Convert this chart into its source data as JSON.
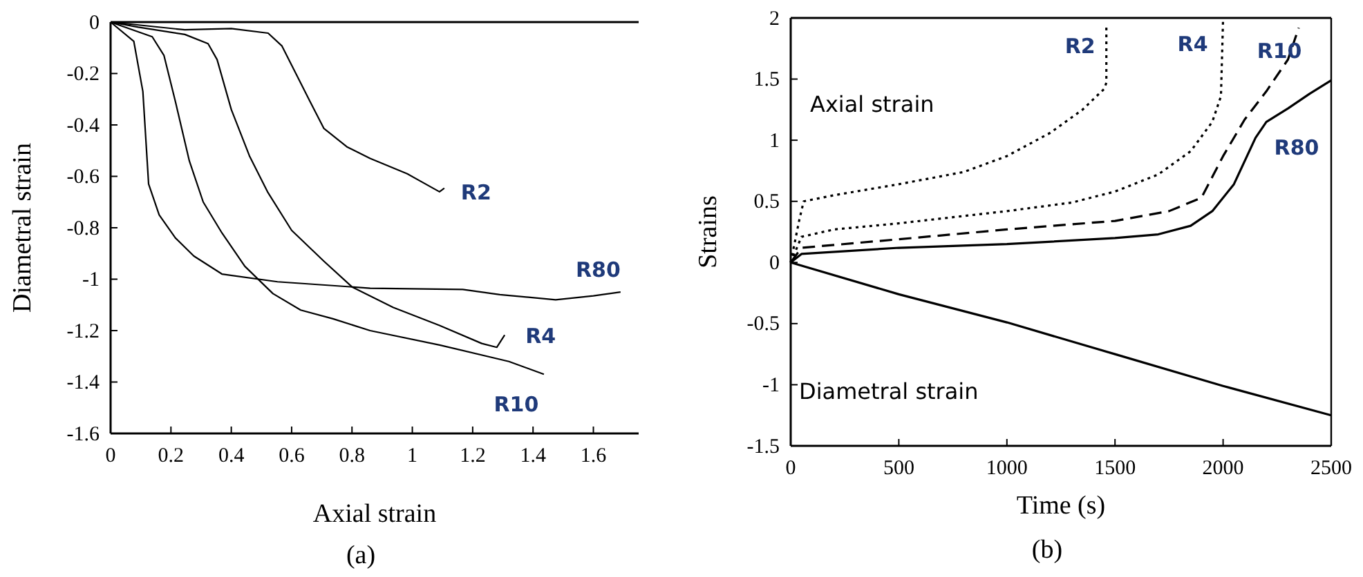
{
  "chart_data": [
    {
      "type": "line",
      "xlabel": "Axial strain",
      "ylabel": "Diametral strain",
      "xlim": [
        0,
        1.75
      ],
      "ylim": [
        -1.6,
        0
      ],
      "xticks": [
        0,
        0.2,
        0.4,
        0.6,
        0.8,
        1,
        1.2,
        1.4,
        1.6
      ],
      "yticks": [
        0,
        -0.2,
        -0.4,
        -0.6,
        -0.8,
        -1,
        -1.2,
        -1.4,
        -1.6
      ],
      "line_style": "solid",
      "annotations": [
        "(a)"
      ],
      "series": [
        {
          "name": "R2",
          "color": "#000000",
          "x": [
            0,
            0.246,
            0.4,
            0.522,
            0.568,
            0.614,
            0.66,
            0.707,
            0.783,
            0.86,
            0.983,
            1.09,
            1.106
          ],
          "values": [
            0,
            -0.03,
            -0.025,
            -0.043,
            -0.093,
            -0.2,
            -0.307,
            -0.414,
            -0.485,
            -0.53,
            -0.59,
            -0.66,
            -0.646
          ]
        },
        {
          "name": "R4",
          "color": "#000000",
          "x": [
            0,
            0.092,
            0.246,
            0.323,
            0.353,
            0.4,
            0.46,
            0.52,
            0.6,
            0.707,
            0.8,
            0.937,
            1.09,
            1.23,
            1.28,
            1.306
          ],
          "values": [
            0,
            -0.02,
            -0.048,
            -0.084,
            -0.146,
            -0.34,
            -0.52,
            -0.66,
            -0.81,
            -0.93,
            -1.03,
            -1.11,
            -1.18,
            -1.25,
            -1.265,
            -1.217
          ]
        },
        {
          "name": "R10",
          "color": "#000000",
          "x": [
            0,
            0.138,
            0.177,
            0.215,
            0.261,
            0.307,
            0.369,
            0.445,
            0.538,
            0.63,
            0.737,
            0.86,
            1.09,
            1.32,
            1.436
          ],
          "values": [
            0,
            -0.057,
            -0.13,
            -0.31,
            -0.54,
            -0.7,
            -0.82,
            -0.95,
            -1.056,
            -1.12,
            -1.154,
            -1.2,
            -1.256,
            -1.32,
            -1.37
          ]
        },
        {
          "name": "R80",
          "color": "#000000",
          "x": [
            0,
            0.077,
            0.107,
            0.126,
            0.161,
            0.215,
            0.276,
            0.369,
            0.553,
            0.86,
            1.167,
            1.29,
            1.475,
            1.6,
            1.69
          ],
          "values": [
            0,
            -0.075,
            -0.27,
            -0.63,
            -0.75,
            -0.84,
            -0.91,
            -0.98,
            -1.01,
            -1.035,
            -1.04,
            -1.06,
            -1.08,
            -1.065,
            -1.05
          ]
        }
      ]
    },
    {
      "type": "line",
      "xlabel": "Time (s)",
      "ylabel": "Strains",
      "xlim": [
        0,
        2500
      ],
      "ylim": [
        -1.5,
        2
      ],
      "xticks": [
        0,
        500,
        1000,
        1500,
        2000,
        2500
      ],
      "yticks": [
        -1.5,
        -1,
        -0.5,
        0,
        0.5,
        1,
        1.5,
        2
      ],
      "annotations": [
        "Axial strain",
        "Diametral strain",
        "(b)"
      ],
      "series": [
        {
          "name": "R2",
          "color": "#000000",
          "line_style": "dotted",
          "x": [
            0,
            40,
            60,
            200,
            500,
            800,
            1000,
            1200,
            1350,
            1450,
            1460,
            1460
          ],
          "values": [
            0,
            0.35,
            0.5,
            0.55,
            0.64,
            0.74,
            0.87,
            1.06,
            1.25,
            1.42,
            1.47,
            1.95
          ]
        },
        {
          "name": "R4",
          "color": "#000000",
          "line_style": "dotted",
          "x": [
            0,
            50,
            200,
            500,
            1000,
            1300,
            1500,
            1700,
            1850,
            1950,
            1990,
            2000
          ],
          "values": [
            0,
            0.21,
            0.27,
            0.32,
            0.42,
            0.49,
            0.58,
            0.72,
            0.91,
            1.15,
            1.36,
            2
          ]
        },
        {
          "name": "R10",
          "color": "#000000",
          "line_style": "dashed",
          "x": [
            0,
            50,
            500,
            1000,
            1500,
            1750,
            1900,
            2000,
            2100,
            2200,
            2300,
            2350
          ],
          "values": [
            0,
            0.12,
            0.19,
            0.27,
            0.34,
            0.42,
            0.53,
            0.87,
            1.17,
            1.4,
            1.66,
            1.92
          ]
        },
        {
          "name": "R80",
          "color": "#000000",
          "line_style": "solid",
          "x": [
            0,
            50,
            500,
            1000,
            1500,
            1700,
            1850,
            1950,
            2050,
            2150,
            2200,
            2300,
            2400,
            2500
          ],
          "values": [
            0,
            0.07,
            0.12,
            0.15,
            0.2,
            0.23,
            0.3,
            0.42,
            0.64,
            1.02,
            1.15,
            1.26,
            1.38,
            1.49
          ]
        },
        {
          "color": "#000000",
          "line_style": "solid",
          "x": [
            0,
            500,
            1000,
            1500,
            2000,
            2500
          ],
          "values": [
            0,
            -0.26,
            -0.49,
            -0.75,
            -1.01,
            -1.25
          ]
        }
      ]
    }
  ]
}
